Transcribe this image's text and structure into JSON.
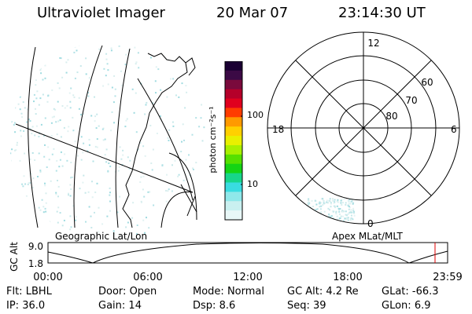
{
  "header": {
    "instrument": "Ultraviolet Imager",
    "date": "20 Mar 07",
    "time": "23:14:30 UT"
  },
  "left_map": {
    "caption": "Geographic Lat/Lon"
  },
  "color_bar": {
    "unit_label": "photon cm⁻²s⁻¹",
    "ticks": [
      "100",
      "10"
    ],
    "colors": [
      "#1a0033",
      "#3b0a45",
      "#7a0a3c",
      "#b5002a",
      "#e0001e",
      "#ff3c00",
      "#ff9a00",
      "#ffd000",
      "#e8f000",
      "#a8f000",
      "#55e000",
      "#14d414",
      "#17d68a",
      "#39dce0",
      "#8fe8ea",
      "#c9f0f0",
      "#e8f7f7"
    ]
  },
  "polar_plot": {
    "caption": "Apex MLat/MLT",
    "mlt_labels": {
      "top": "12",
      "left": "18",
      "right": "6",
      "bottom": "0"
    },
    "lat_labels": [
      "60",
      "70",
      "80"
    ]
  },
  "altitude_plot": {
    "axis_title": "GC Alt",
    "y_ticks": [
      "9.0",
      "1.8"
    ],
    "x_ticks": [
      "00:00",
      "06:00",
      "12:00",
      "18:00",
      "23:59"
    ],
    "current_time_marker": "23:14"
  },
  "status": {
    "row1": [
      {
        "label": "Flt:",
        "value": "LBHL"
      },
      {
        "label": "Door:",
        "value": "Open"
      },
      {
        "label": "Mode:",
        "value": "Normal"
      },
      {
        "label": "GC Alt:",
        "value": "4.2 Re"
      },
      {
        "label": "GLat:",
        "value": "-66.3"
      }
    ],
    "row2": [
      {
        "label": "IP:",
        "value": "36.0"
      },
      {
        "label": "Gain:",
        "value": "14"
      },
      {
        "label": "Dsp:",
        "value": "8.6"
      },
      {
        "label": "Seq:",
        "value": "39"
      },
      {
        "label": "GLon:",
        "value": "6.9"
      }
    ]
  }
}
